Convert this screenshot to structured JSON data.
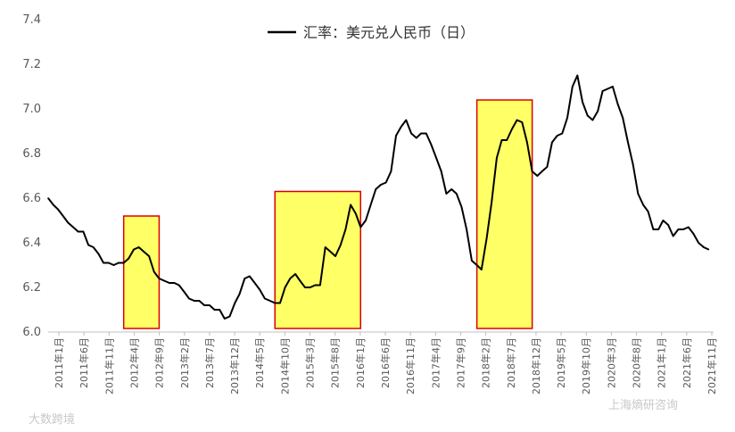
{
  "chart_data": {
    "type": "line",
    "title": "",
    "xlabel": "",
    "ylabel": "",
    "ylim": [
      6.0,
      7.4
    ],
    "yticks": [
      "6.0",
      "6.2",
      "6.4",
      "6.6",
      "6.8",
      "7.0",
      "7.2",
      "7.4"
    ],
    "grid": false,
    "legend_position": "top-center",
    "x_tick_labels": [
      "2011年1月",
      "2011年6月",
      "2011年11月",
      "2012年4月",
      "2012年9月",
      "2013年2月",
      "2013年7月",
      "2013年12月",
      "2014年5月",
      "2014年10月",
      "2015年3月",
      "2015年8月",
      "2016年1月",
      "2016年6月",
      "2016年11月",
      "2017年4月",
      "2017年9月",
      "2018年2月",
      "2018年7月",
      "2018年12月",
      "2019年5月",
      "2019年10月",
      "2020年3月",
      "2020年8月",
      "2021年1月",
      "2021年6月",
      "2021年11月"
    ],
    "series": [
      {
        "name": "汇率：美元兑人民币（日）",
        "color": "#000000",
        "x": [
          "2011-01",
          "2011-02",
          "2011-03",
          "2011-04",
          "2011-05",
          "2011-06",
          "2011-07",
          "2011-08",
          "2011-09",
          "2011-10",
          "2011-11",
          "2011-12",
          "2012-01",
          "2012-02",
          "2012-03",
          "2012-04",
          "2012-05",
          "2012-06",
          "2012-07",
          "2012-08",
          "2012-09",
          "2012-10",
          "2012-11",
          "2012-12",
          "2013-01",
          "2013-02",
          "2013-03",
          "2013-04",
          "2013-05",
          "2013-06",
          "2013-07",
          "2013-08",
          "2013-09",
          "2013-10",
          "2013-11",
          "2013-12",
          "2014-01",
          "2014-02",
          "2014-03",
          "2014-04",
          "2014-05",
          "2014-06",
          "2014-07",
          "2014-08",
          "2014-09",
          "2014-10",
          "2014-11",
          "2014-12",
          "2015-01",
          "2015-02",
          "2015-03",
          "2015-04",
          "2015-05",
          "2015-06",
          "2015-07",
          "2015-08",
          "2015-09",
          "2015-10",
          "2015-11",
          "2015-12",
          "2016-01",
          "2016-02",
          "2016-03",
          "2016-04",
          "2016-05",
          "2016-06",
          "2016-07",
          "2016-08",
          "2016-09",
          "2016-10",
          "2016-11",
          "2016-12",
          "2017-01",
          "2017-02",
          "2017-03",
          "2017-04",
          "2017-05",
          "2017-06",
          "2017-07",
          "2017-08",
          "2017-09",
          "2017-10",
          "2017-11",
          "2017-12",
          "2018-01",
          "2018-02",
          "2018-03",
          "2018-04",
          "2018-05",
          "2018-06",
          "2018-07",
          "2018-08",
          "2018-09",
          "2018-10",
          "2018-11",
          "2018-12",
          "2019-01",
          "2019-02",
          "2019-03",
          "2019-04",
          "2019-05",
          "2019-06",
          "2019-07",
          "2019-08",
          "2019-09",
          "2019-10",
          "2019-11",
          "2019-12",
          "2020-01",
          "2020-02",
          "2020-03",
          "2020-04",
          "2020-05",
          "2020-06",
          "2020-07",
          "2020-08",
          "2020-09",
          "2020-10",
          "2020-11",
          "2020-12",
          "2021-01",
          "2021-02",
          "2021-03",
          "2021-04",
          "2021-05",
          "2021-06",
          "2021-07",
          "2021-08",
          "2021-09",
          "2021-10",
          "2021-11",
          "2021-12"
        ],
        "values": [
          6.6,
          6.57,
          6.55,
          6.52,
          6.49,
          6.47,
          6.45,
          6.45,
          6.39,
          6.38,
          6.35,
          6.31,
          6.31,
          6.3,
          6.31,
          6.31,
          6.33,
          6.37,
          6.38,
          6.36,
          6.34,
          6.27,
          6.24,
          6.23,
          6.22,
          6.22,
          6.21,
          6.18,
          6.15,
          6.14,
          6.14,
          6.12,
          6.12,
          6.1,
          6.1,
          6.06,
          6.07,
          6.13,
          6.17,
          6.24,
          6.25,
          6.22,
          6.19,
          6.15,
          6.14,
          6.13,
          6.13,
          6.2,
          6.24,
          6.26,
          6.23,
          6.2,
          6.2,
          6.21,
          6.21,
          6.38,
          6.36,
          6.34,
          6.39,
          6.46,
          6.57,
          6.53,
          6.47,
          6.5,
          6.57,
          6.64,
          6.66,
          6.67,
          6.72,
          6.88,
          6.92,
          6.95,
          6.89,
          6.87,
          6.89,
          6.89,
          6.84,
          6.78,
          6.72,
          6.62,
          6.64,
          6.62,
          6.56,
          6.46,
          6.32,
          6.3,
          6.28,
          6.42,
          6.58,
          6.78,
          6.86,
          6.86,
          6.91,
          6.95,
          6.94,
          6.85,
          6.72,
          6.7,
          6.72,
          6.74,
          6.85,
          6.88,
          6.89,
          6.96,
          7.1,
          7.15,
          7.03,
          6.97,
          6.95,
          6.99,
          7.08,
          7.09,
          7.1,
          7.02,
          6.96,
          6.85,
          6.75,
          6.62,
          6.57,
          6.54,
          6.46,
          6.46,
          6.5,
          6.48,
          6.43,
          6.46,
          6.46,
          6.47,
          6.44,
          6.4,
          6.38,
          6.37
        ]
      }
    ],
    "highlight_regions": [
      {
        "from": "2012-04",
        "to": "2012-10",
        "ymax": 6.52,
        "fill": "#ffff66",
        "stroke": "#dd0000"
      },
      {
        "from": "2014-10",
        "to": "2016-02",
        "ymax": 6.63,
        "fill": "#ffff66",
        "stroke": "#dd0000"
      },
      {
        "from": "2018-02",
        "to": "2018-12",
        "ymax": 7.04,
        "fill": "#ffff66",
        "stroke": "#dd0000"
      }
    ]
  },
  "watermarks": [
    "大数跨境",
    "上海熵研咨询"
  ]
}
